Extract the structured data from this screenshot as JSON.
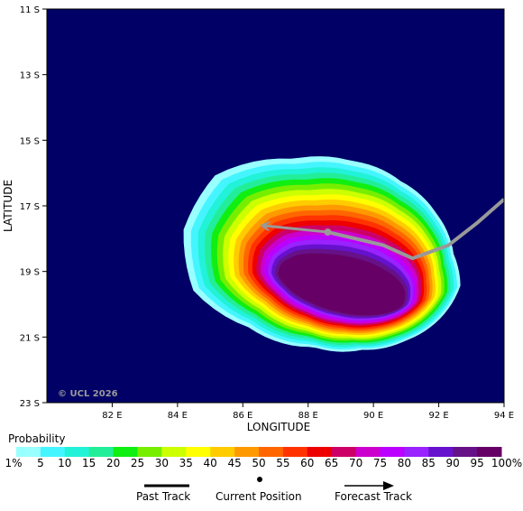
{
  "map": {
    "axis_x_title": "LONGITUDE",
    "axis_y_title": "LATITUDE",
    "lat_ticks": [
      "11 S",
      "13 S",
      "15 S",
      "17 S",
      "19 S",
      "21 S",
      "23 S"
    ],
    "lon_ticks": [
      "82 E",
      "84 E",
      "86 E",
      "88 E",
      "90 E",
      "92 E",
      "94 E"
    ],
    "copyright": "© UCL 2026",
    "ocean_color": "#000066",
    "track_color": "#999999"
  },
  "storm": {
    "past_track": [
      [
        94.0,
        16.8
      ],
      [
        93.2,
        17.5
      ],
      [
        92.3,
        18.2
      ],
      [
        91.2,
        18.6
      ],
      [
        90.3,
        18.2
      ],
      [
        88.6,
        17.8
      ]
    ],
    "current_position": [
      88.6,
      17.8
    ],
    "forecast_track": [
      [
        88.6,
        17.8
      ],
      [
        86.6,
        17.6
      ]
    ]
  },
  "legend": {
    "title": "Probability",
    "labels": [
      "1%",
      "5",
      "10",
      "15",
      "20",
      "25",
      "30",
      "35",
      "40",
      "45",
      "50",
      "55",
      "60",
      "65",
      "70",
      "75",
      "80",
      "85",
      "90",
      "95",
      "100%"
    ],
    "colors": [
      "#99ffff",
      "#44f5ff",
      "#22f2d8",
      "#22ee99",
      "#11ee11",
      "#77ee00",
      "#ccff00",
      "#ffff00",
      "#ffcc00",
      "#ff9900",
      "#ff6600",
      "#ff3300",
      "#ee0000",
      "#cc0066",
      "#cc00cc",
      "#bb00ff",
      "#9922ff",
      "#6611cc",
      "#661188",
      "#660066"
    ],
    "key_past": "Past Track",
    "key_current": "Current Position",
    "key_forecast": "Forecast Track"
  }
}
